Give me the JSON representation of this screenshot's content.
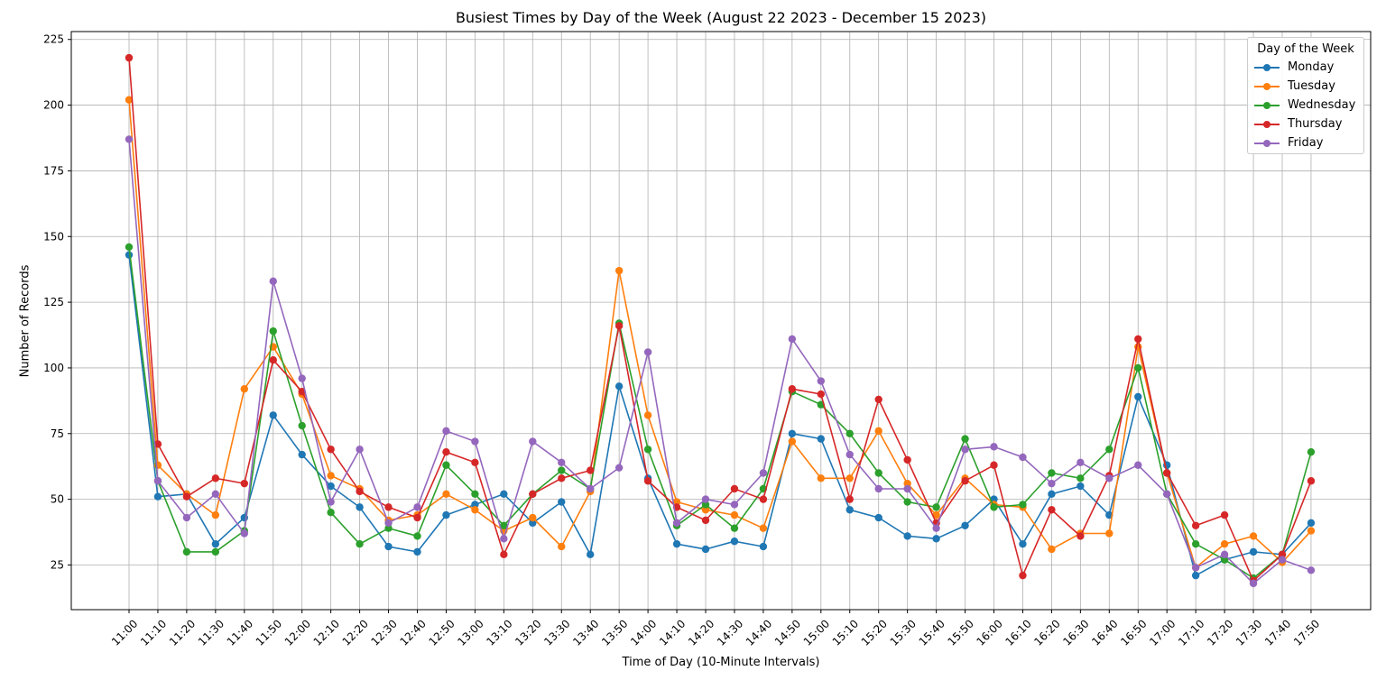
{
  "chart_data": {
    "type": "line",
    "title": "Busiest Times by Day of the Week (August 22 2023 - December 15 2023)",
    "xlabel": "Time of Day (10-Minute Intervals)",
    "ylabel": "Number of Records",
    "legend_title": "Day of the Week",
    "legend_position": "top-right",
    "grid": true,
    "x": [
      "11:00",
      "11:10",
      "11:20",
      "11:30",
      "11:40",
      "11:50",
      "12:00",
      "12:10",
      "12:20",
      "12:30",
      "12:40",
      "12:50",
      "13:00",
      "13:10",
      "13:20",
      "13:30",
      "13:40",
      "13:50",
      "14:00",
      "14:10",
      "14:20",
      "14:30",
      "14:40",
      "14:50",
      "15:00",
      "15:10",
      "15:20",
      "15:30",
      "15:40",
      "15:50",
      "16:00",
      "16:10",
      "16:20",
      "16:30",
      "16:40",
      "16:50",
      "17:00",
      "17:10",
      "17:20",
      "17:30",
      "17:40",
      "17:50"
    ],
    "yticks": [
      25,
      50,
      75,
      100,
      125,
      150,
      175,
      200,
      225
    ],
    "ylim": [
      8,
      228
    ],
    "series": [
      {
        "name": "Monday",
        "color": "#1f77b4",
        "values": [
          143,
          51,
          52,
          33,
          43,
          82,
          67,
          55,
          47,
          32,
          30,
          44,
          48,
          52,
          41,
          49,
          29,
          93,
          58,
          33,
          31,
          34,
          32,
          75,
          73,
          46,
          43,
          36,
          35,
          40,
          50,
          33,
          52,
          55,
          44,
          89,
          63,
          21,
          27,
          30,
          29,
          41
        ]
      },
      {
        "name": "Tuesday",
        "color": "#ff7f0e",
        "values": [
          202,
          63,
          52,
          44,
          92,
          108,
          90,
          59,
          54,
          42,
          44,
          52,
          46,
          38,
          43,
          32,
          53,
          137,
          82,
          49,
          46,
          44,
          39,
          72,
          58,
          58,
          76,
          56,
          44,
          58,
          48,
          47,
          31,
          37,
          37,
          108,
          60,
          24,
          33,
          36,
          26,
          38
        ]
      },
      {
        "name": "Wednesday",
        "color": "#2ca02c",
        "values": [
          146,
          57,
          30,
          30,
          38,
          114,
          78,
          45,
          33,
          39,
          36,
          63,
          52,
          40,
          52,
          61,
          54,
          117,
          69,
          40,
          48,
          39,
          54,
          91,
          86,
          75,
          60,
          49,
          47,
          73,
          47,
          48,
          60,
          58,
          69,
          100,
          52,
          33,
          27,
          20,
          29,
          68
        ]
      },
      {
        "name": "Thursday",
        "color": "#d62728",
        "values": [
          218,
          71,
          51,
          58,
          56,
          103,
          91,
          69,
          53,
          47,
          43,
          68,
          64,
          29,
          52,
          58,
          61,
          116,
          57,
          47,
          42,
          54,
          50,
          92,
          90,
          50,
          88,
          65,
          41,
          57,
          63,
          21,
          46,
          36,
          59,
          111,
          60,
          40,
          44,
          19,
          29,
          57
        ]
      },
      {
        "name": "Friday",
        "color": "#9467bd",
        "values": [
          187,
          57,
          43,
          52,
          37,
          133,
          96,
          49,
          69,
          41,
          47,
          76,
          72,
          35,
          72,
          64,
          54,
          62,
          106,
          41,
          50,
          48,
          60,
          111,
          95,
          67,
          54,
          54,
          39,
          69,
          70,
          66,
          56,
          64,
          58,
          63,
          52,
          24,
          29,
          18,
          27,
          23
        ]
      }
    ]
  }
}
